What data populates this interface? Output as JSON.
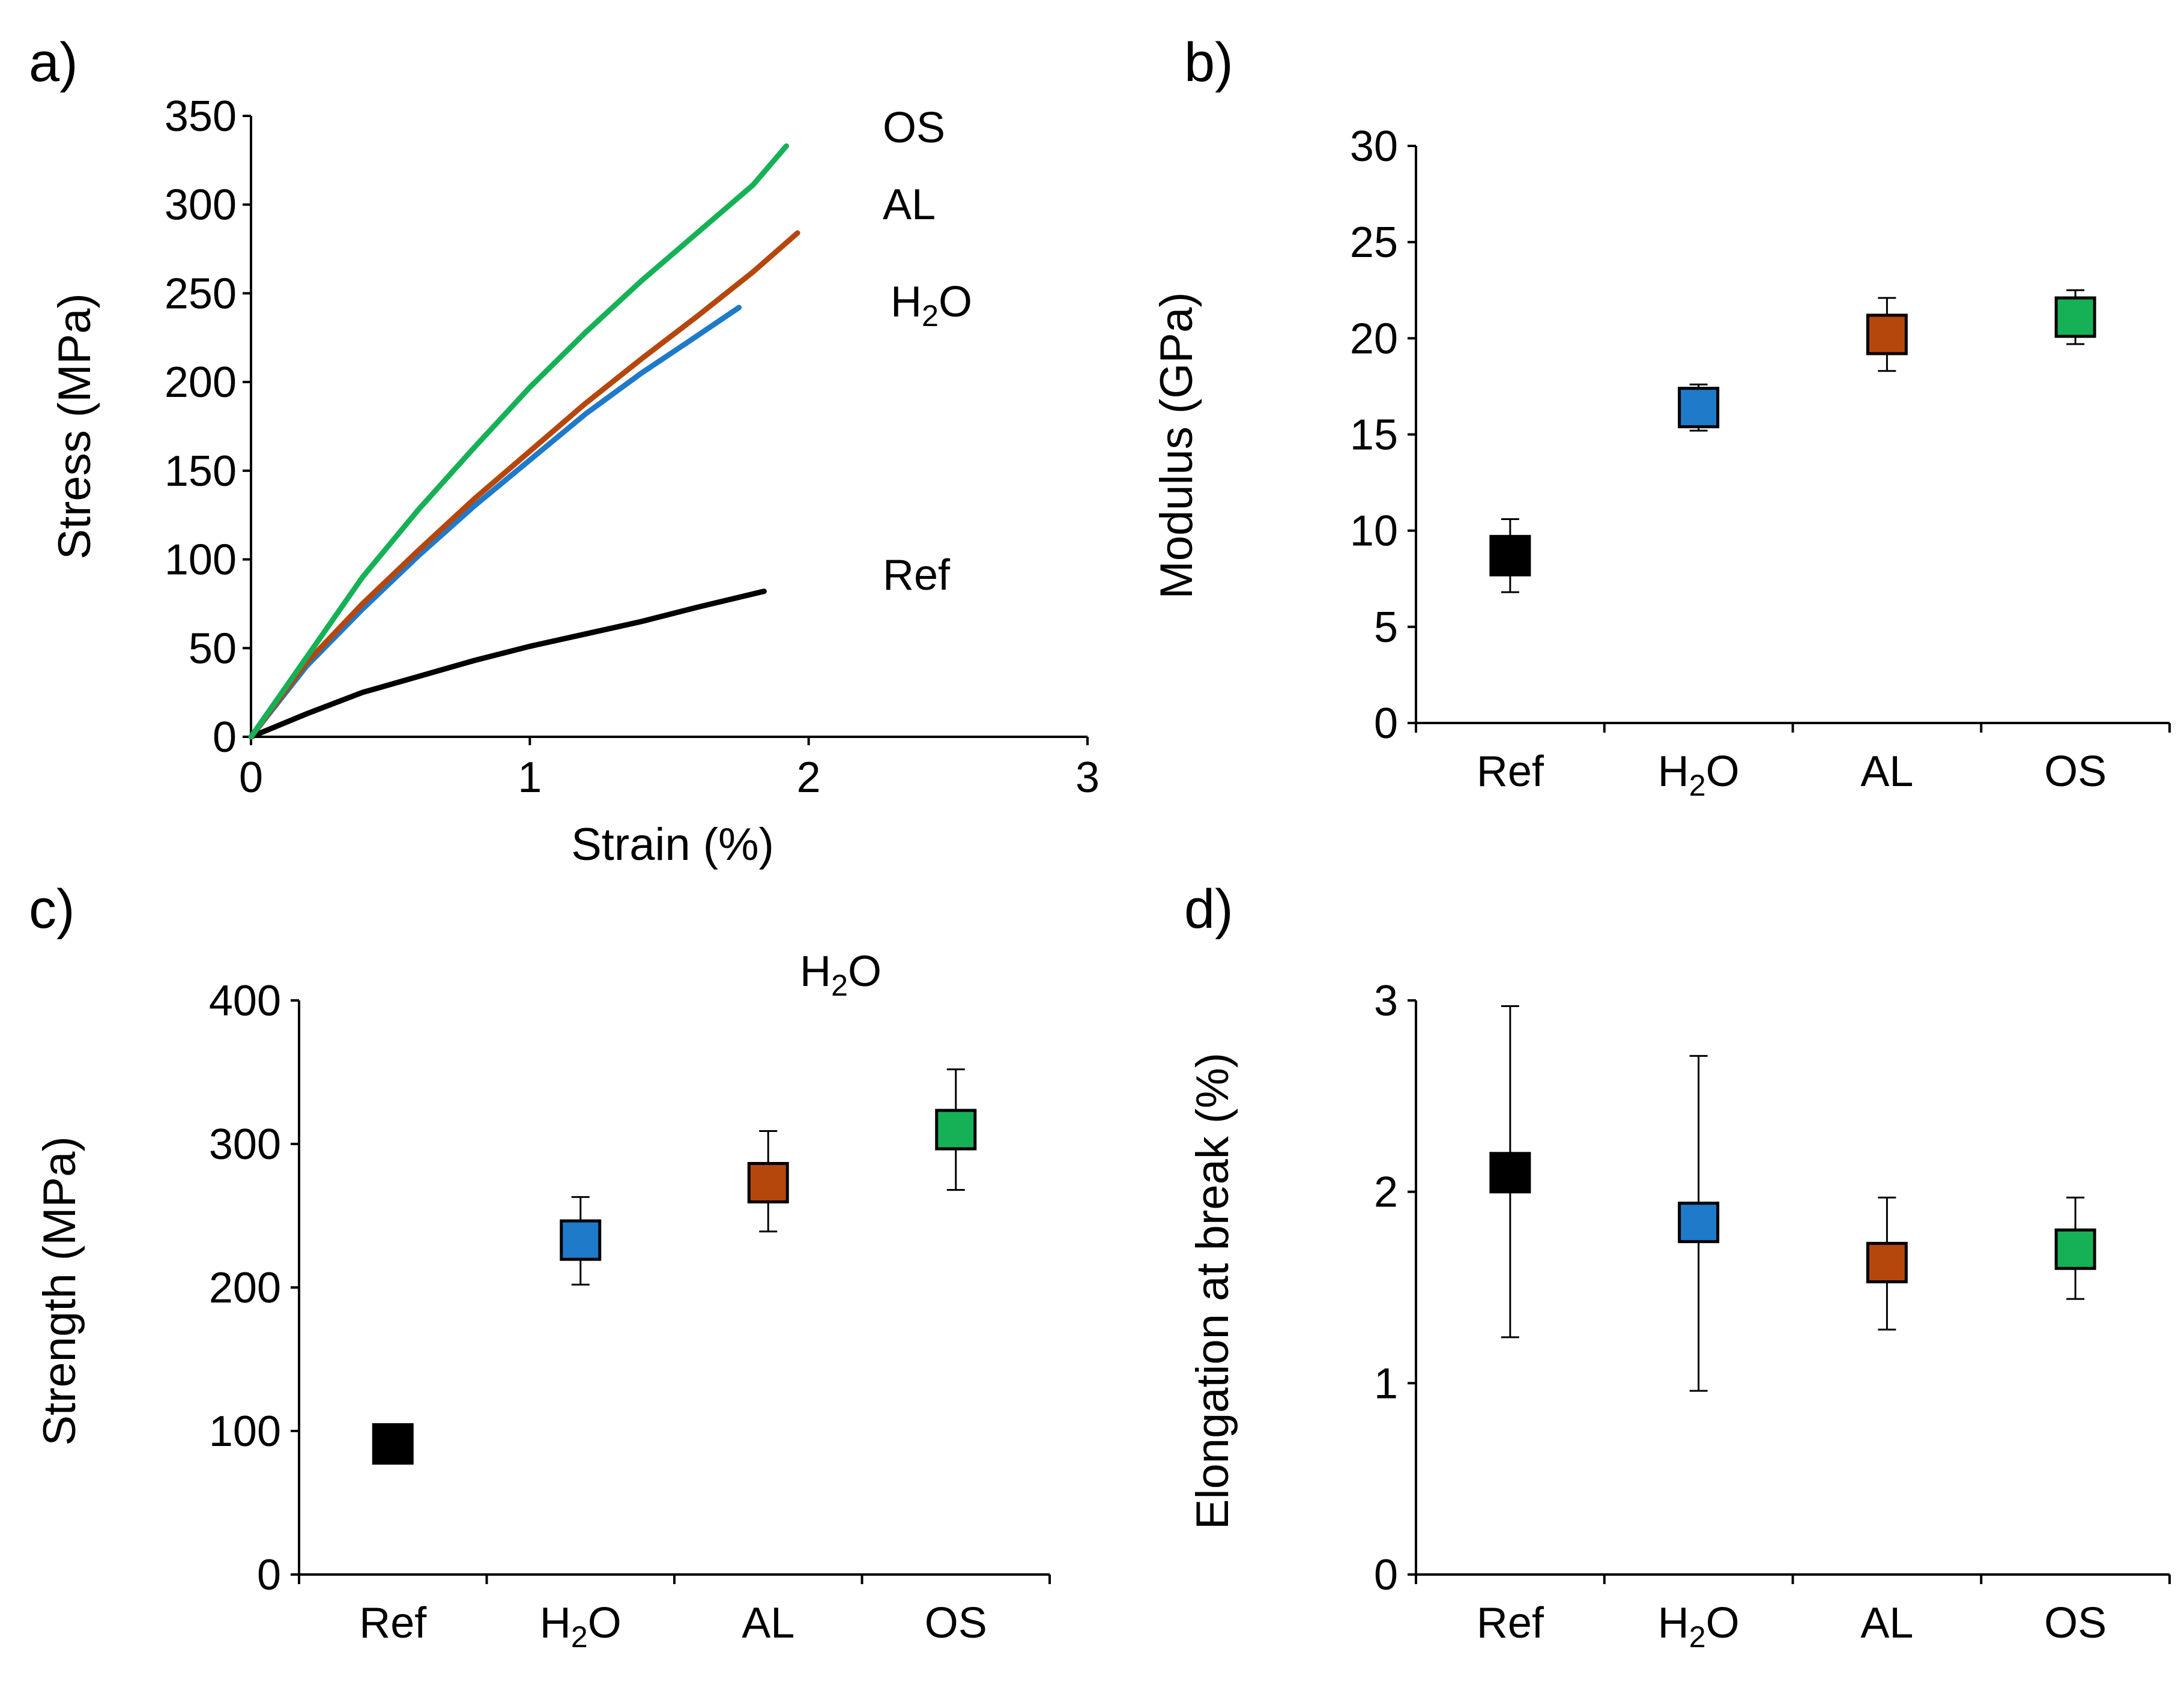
{
  "chart_data": [
    {
      "panel": "a)",
      "type": "line",
      "xlabel": "Strain (%)",
      "ylabel": "Stress (MPa)",
      "xlim": [
        0,
        3
      ],
      "ylim": [
        0,
        350
      ],
      "x_ticks": [
        "0",
        "1",
        "2",
        "3"
      ],
      "y_ticks": [
        "0",
        "50",
        "100",
        "150",
        "200",
        "250",
        "300",
        "350"
      ],
      "series": [
        {
          "name": "Ref",
          "label": "Ref",
          "color": "#000000",
          "x": [
            0,
            0.2,
            0.4,
            0.6,
            0.8,
            1.0,
            1.2,
            1.4,
            1.6,
            1.84
          ],
          "y": [
            0,
            13,
            25,
            34,
            43,
            51,
            58,
            65,
            73,
            82
          ]
        },
        {
          "name": "H2O",
          "label_base": "H",
          "label_sub": "2",
          "label_tail": "O",
          "color": "#1f7ac9",
          "x": [
            0,
            0.2,
            0.4,
            0.6,
            0.8,
            1.0,
            1.2,
            1.4,
            1.6,
            1.75
          ],
          "y": [
            0,
            40,
            72,
            102,
            130,
            156,
            182,
            205,
            226,
            242
          ]
        },
        {
          "name": "AL",
          "label": "AL",
          "color": "#b5470d",
          "x": [
            0,
            0.2,
            0.4,
            0.6,
            0.8,
            1.0,
            1.2,
            1.4,
            1.6,
            1.8,
            1.96
          ],
          "y": [
            0,
            42,
            75,
            105,
            134,
            161,
            188,
            213,
            237,
            262,
            284
          ]
        },
        {
          "name": "OS",
          "label": "OS",
          "color": "#16b156",
          "x": [
            0,
            0.2,
            0.4,
            0.6,
            0.8,
            1.0,
            1.2,
            1.4,
            1.6,
            1.8,
            1.92
          ],
          "y": [
            0,
            45,
            90,
            128,
            163,
            197,
            228,
            257,
            284,
            311,
            333
          ]
        }
      ]
    },
    {
      "panel": "b)",
      "type": "scatter",
      "ylabel": "Modulus (GPa)",
      "ylim": [
        0,
        30
      ],
      "y_ticks": [
        "0",
        "5",
        "10",
        "15",
        "20",
        "25",
        "30"
      ],
      "categories": [
        "Ref",
        "H2O",
        "AL",
        "OS"
      ],
      "values": [
        8.7,
        16.4,
        20.2,
        21.1
      ],
      "err_low": [
        6.8,
        15.2,
        18.3,
        19.7
      ],
      "err_high": [
        10.6,
        17.6,
        22.1,
        22.5
      ],
      "colors": [
        "#000000",
        "#1f7ac9",
        "#b5470d",
        "#16b156"
      ]
    },
    {
      "panel": "c)",
      "type": "scatter",
      "ylabel": "Strength (MPa)",
      "ylim": [
        0,
        400
      ],
      "y_ticks": [
        "0",
        "100",
        "200",
        "300",
        "400"
      ],
      "categories": [
        "Ref",
        "H2O",
        "AL",
        "OS"
      ],
      "values": [
        91,
        233,
        273,
        310
      ],
      "err_low": [
        81,
        202,
        239,
        268
      ],
      "err_high": [
        101,
        263,
        309,
        352
      ],
      "colors": [
        "#000000",
        "#1f7ac9",
        "#b5470d",
        "#16b156"
      ],
      "annotation": {
        "base": "H",
        "sub": "2",
        "tail": "O"
      }
    },
    {
      "panel": "d)",
      "type": "scatter",
      "ylabel": "Elongation at break (%)",
      "ylim": [
        0,
        3
      ],
      "y_ticks": [
        "0",
        "1",
        "2",
        "3"
      ],
      "categories": [
        "Ref",
        "H2O",
        "AL",
        "OS"
      ],
      "values": [
        2.1,
        1.84,
        1.63,
        1.7
      ],
      "err_low": [
        1.24,
        0.96,
        1.28,
        1.44
      ],
      "err_high": [
        2.97,
        2.71,
        1.97,
        1.97
      ],
      "colors": [
        "#000000",
        "#1f7ac9",
        "#b5470d",
        "#16b156"
      ]
    }
  ]
}
